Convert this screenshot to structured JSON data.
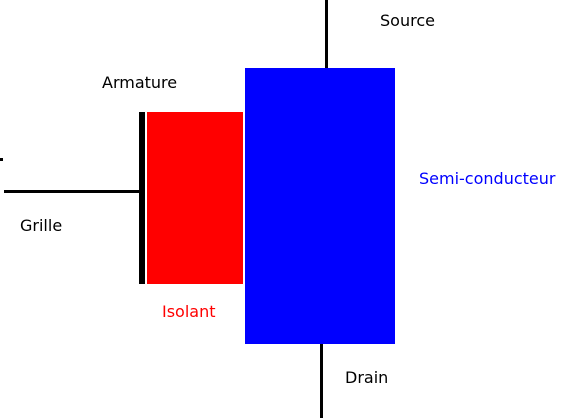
{
  "diagram": {
    "labels": {
      "source": "Source",
      "armature": "Armature",
      "semiconductor": "Semi-conducteur",
      "grille": "Grille",
      "isolant": "Isolant",
      "drain": "Drain"
    },
    "colors": {
      "background": "#ffffff",
      "wire": "#000000",
      "armature": "#000000",
      "isolant": "#ff0000",
      "semiconductor": "#0000ff",
      "text_default": "#000000",
      "text_isolant": "#ff0000",
      "text_semiconductor": "#0000ff"
    }
  }
}
